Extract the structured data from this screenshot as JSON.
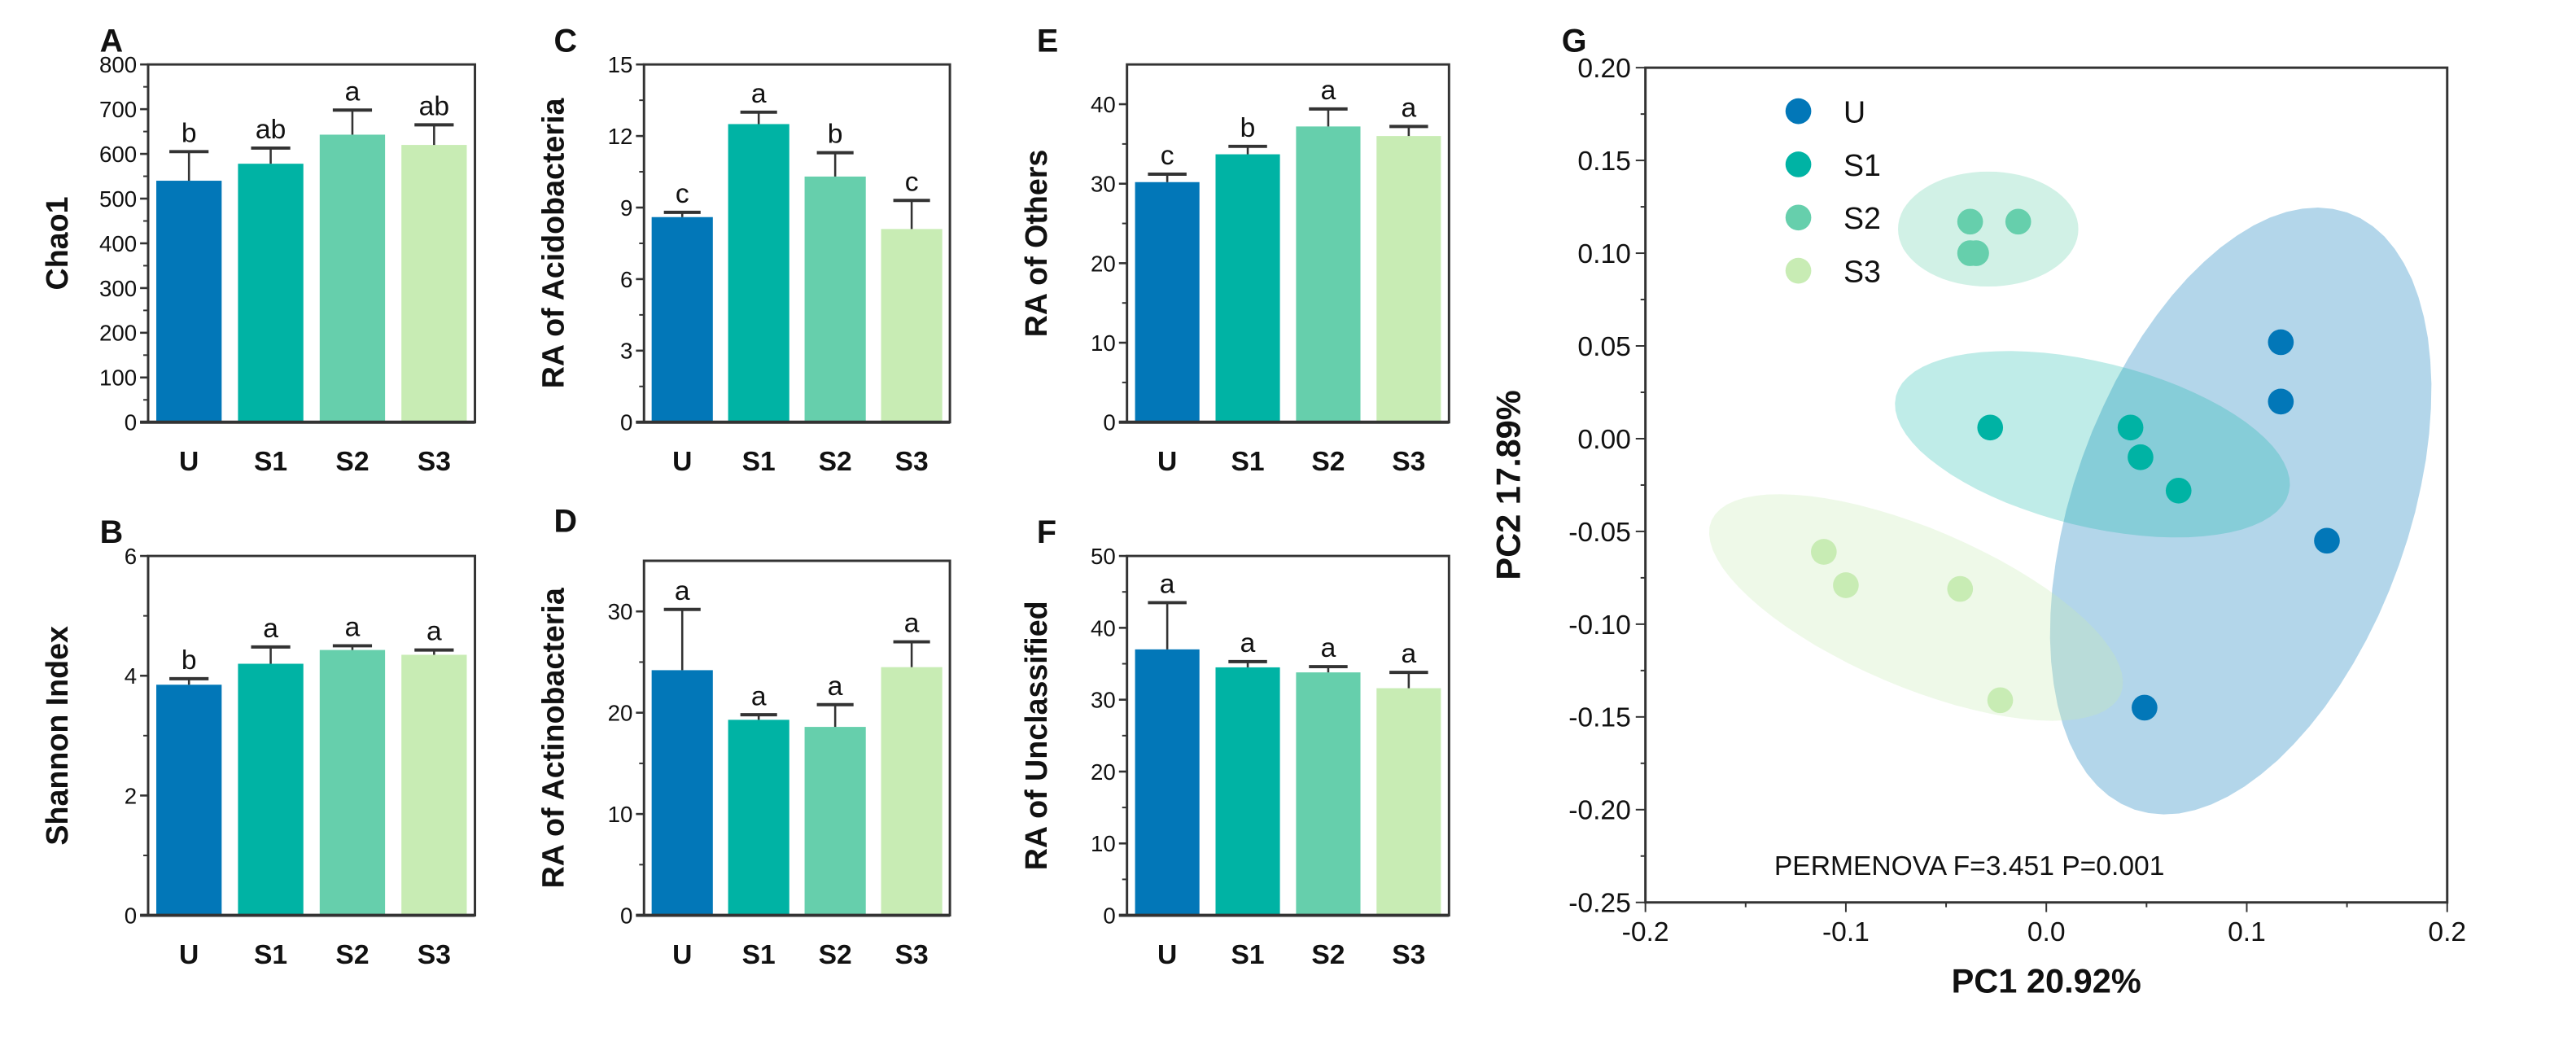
{
  "colors": {
    "U": "#0277b8",
    "S1": "#00b3a4",
    "S2": "#66cfac",
    "S3": "#c8ecb4"
  },
  "chart_data": [
    {
      "panel": "A",
      "type": "bar",
      "ylabel": "Chao1",
      "categories": [
        "U",
        "S1",
        "S2",
        "S3"
      ],
      "values": [
        540,
        578,
        643,
        620
      ],
      "errors": [
        65,
        35,
        55,
        45
      ],
      "letters": [
        "b",
        "ab",
        "a",
        "ab"
      ],
      "ylim": [
        0,
        800
      ],
      "yticks": [
        0,
        100,
        200,
        300,
        400,
        500,
        600,
        700,
        800
      ]
    },
    {
      "panel": "B",
      "type": "bar",
      "ylabel": "Shannon Index",
      "categories": [
        "U",
        "S1",
        "S2",
        "S3"
      ],
      "values": [
        3.85,
        4.2,
        4.43,
        4.35
      ],
      "errors": [
        0.1,
        0.28,
        0.07,
        0.08
      ],
      "letters": [
        "b",
        "a",
        "a",
        "a"
      ],
      "ylim": [
        0,
        6
      ],
      "yticks": [
        0,
        2,
        4,
        6
      ]
    },
    {
      "panel": "C",
      "type": "bar",
      "ylabel": "RA of Acidobacteria",
      "categories": [
        "U",
        "S1",
        "S2",
        "S3"
      ],
      "values": [
        8.6,
        12.5,
        10.3,
        8.1
      ],
      "errors": [
        0.2,
        0.5,
        1.0,
        1.2
      ],
      "letters": [
        "c",
        "a",
        "b",
        "c"
      ],
      "ylim": [
        0,
        15
      ],
      "yticks": [
        0,
        3,
        6,
        9,
        12,
        15
      ]
    },
    {
      "panel": "D",
      "type": "bar",
      "ylabel": "RA of Actinobacteria",
      "categories": [
        "U",
        "S1",
        "S2",
        "S3"
      ],
      "values": [
        24.2,
        19.3,
        18.6,
        24.5
      ],
      "errors": [
        6.0,
        0.5,
        2.2,
        2.5
      ],
      "letters": [
        "a",
        "a",
        "a",
        "a"
      ],
      "ylim": [
        0,
        35
      ],
      "yticks": [
        0,
        10,
        20,
        30
      ]
    },
    {
      "panel": "E",
      "type": "bar",
      "ylabel": "RA of Others",
      "categories": [
        "U",
        "S1",
        "S2",
        "S3"
      ],
      "values": [
        30.2,
        33.7,
        37.2,
        36.0
      ],
      "errors": [
        1.0,
        1.0,
        2.2,
        1.2
      ],
      "letters": [
        "c",
        "b",
        "a",
        "a"
      ],
      "ylim": [
        0,
        45
      ],
      "yticks": [
        0,
        10,
        20,
        30,
        40
      ]
    },
    {
      "panel": "F",
      "type": "bar",
      "ylabel": "RA of Unclassified",
      "categories": [
        "U",
        "S1",
        "S2",
        "S3"
      ],
      "values": [
        37.0,
        34.5,
        33.8,
        31.6
      ],
      "errors": [
        6.5,
        0.8,
        0.8,
        2.2
      ],
      "letters": [
        "a",
        "a",
        "a",
        "a"
      ],
      "ylim": [
        0,
        50
      ],
      "yticks": [
        0,
        10,
        20,
        30,
        40,
        50
      ]
    },
    {
      "panel": "G",
      "type": "scatter",
      "xlabel": "PC1 20.92%",
      "ylabel": "PC2 17.89%",
      "xlim": [
        -0.2,
        0.2
      ],
      "ylim": [
        -0.25,
        0.2
      ],
      "xticks": [
        "-0.2",
        "-0.1",
        "0.0",
        "0.1",
        "0.2"
      ],
      "yticks": [
        "0.20",
        "0.15",
        "0.10",
        "0.05",
        "0.00",
        "-0.05",
        "-0.10",
        "-0.15",
        "-0.20",
        "-0.25"
      ],
      "annotation": "PERMENOVA F=3.451 P=0.001",
      "legend": [
        "U",
        "S1",
        "S2",
        "S3"
      ],
      "legend_position": "top-left",
      "series": [
        {
          "name": "U",
          "points": [
            [
              0.117,
              0.052
            ],
            [
              0.117,
              0.02
            ],
            [
              0.14,
              -0.055
            ],
            [
              0.049,
              -0.145
            ]
          ],
          "ellipse": {
            "center": [
              0.097,
              -0.039
            ],
            "major": [
              0.053,
              0.161
            ],
            "minor": [
              0.079,
              -0.029
            ]
          }
        },
        {
          "name": "S1",
          "points": [
            [
              -0.028,
              0.006
            ],
            [
              0.042,
              0.006
            ],
            [
              0.047,
              -0.01
            ],
            [
              0.066,
              -0.028
            ]
          ],
          "ellipse": {
            "center": [
              0.023,
              -0.003
            ],
            "major": [
              0.098,
              -0.026
            ],
            "minor": [
              -0.01,
              -0.043
            ]
          }
        },
        {
          "name": "S2",
          "points": [
            [
              -0.038,
              0.117
            ],
            [
              -0.014,
              0.117
            ],
            [
              -0.038,
              0.1
            ],
            [
              -0.035,
              0.1
            ]
          ],
          "ellipse": {
            "center": [
              -0.029,
              0.113
            ],
            "major": [
              0.045,
              0.0
            ],
            "minor": [
              0.0,
              0.031
            ]
          }
        },
        {
          "name": "S3",
          "points": [
            [
              -0.111,
              -0.061
            ],
            [
              -0.1,
              -0.079
            ],
            [
              -0.043,
              -0.081
            ],
            [
              -0.023,
              -0.141
            ]
          ],
          "ellipse": {
            "center": [
              -0.065,
              -0.091
            ],
            "major": [
              0.102,
              -0.047
            ],
            "minor": [
              -0.016,
              -0.039
            ]
          }
        }
      ]
    }
  ]
}
